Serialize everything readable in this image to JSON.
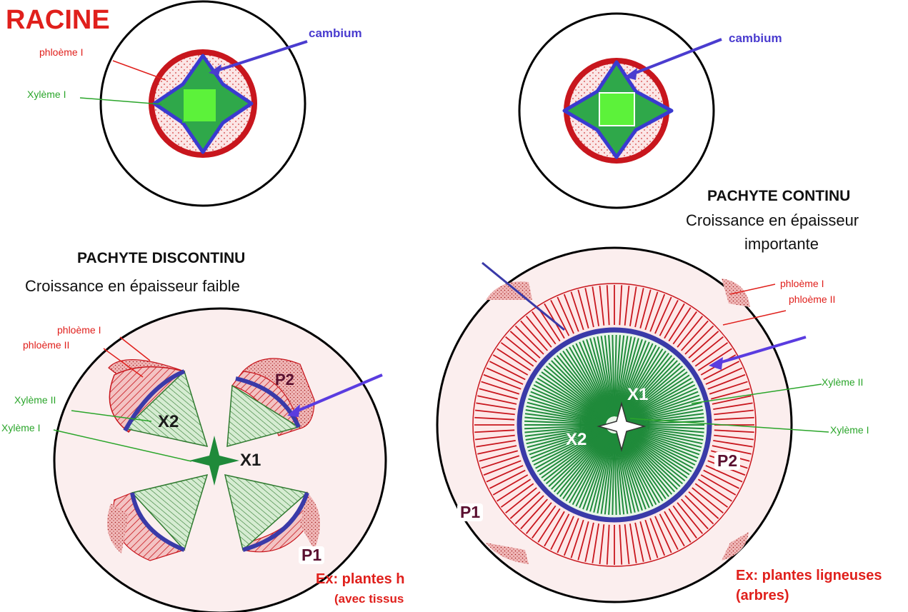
{
  "labels": {
    "racine": "RACINE",
    "cambium": "cambium",
    "phloeme_1": "phloème I",
    "phloeme_2": "phloème II",
    "xyleme_1": "Xylème I",
    "xyleme_2": "Xylème II",
    "x1": "X1",
    "x2": "X2",
    "p1": "P1",
    "p2": "P2"
  },
  "discontinu": {
    "title": "PACHYTE DISCONTINU",
    "subtitle": "Croissance en épaisseur faible",
    "example_line1": "Ex: plantes h",
    "example_line2": "(avec tissus"
  },
  "continu": {
    "title": "PACHYTE CONTINU",
    "subtitle_line1": "Croissance en épaisseur",
    "subtitle_line2": "importante",
    "example_line1": "Ex: plantes ligneuses",
    "example_line2": "(arbres)"
  },
  "colors": {
    "phloem_red": "#c8161d",
    "xylem_green": "#1f8a3a",
    "xylem_light": "#5cf23a",
    "cambium_blue": "#3a3aa8",
    "arrow_blue": "#5a3ce0",
    "background_pink": "#fbeeee"
  }
}
